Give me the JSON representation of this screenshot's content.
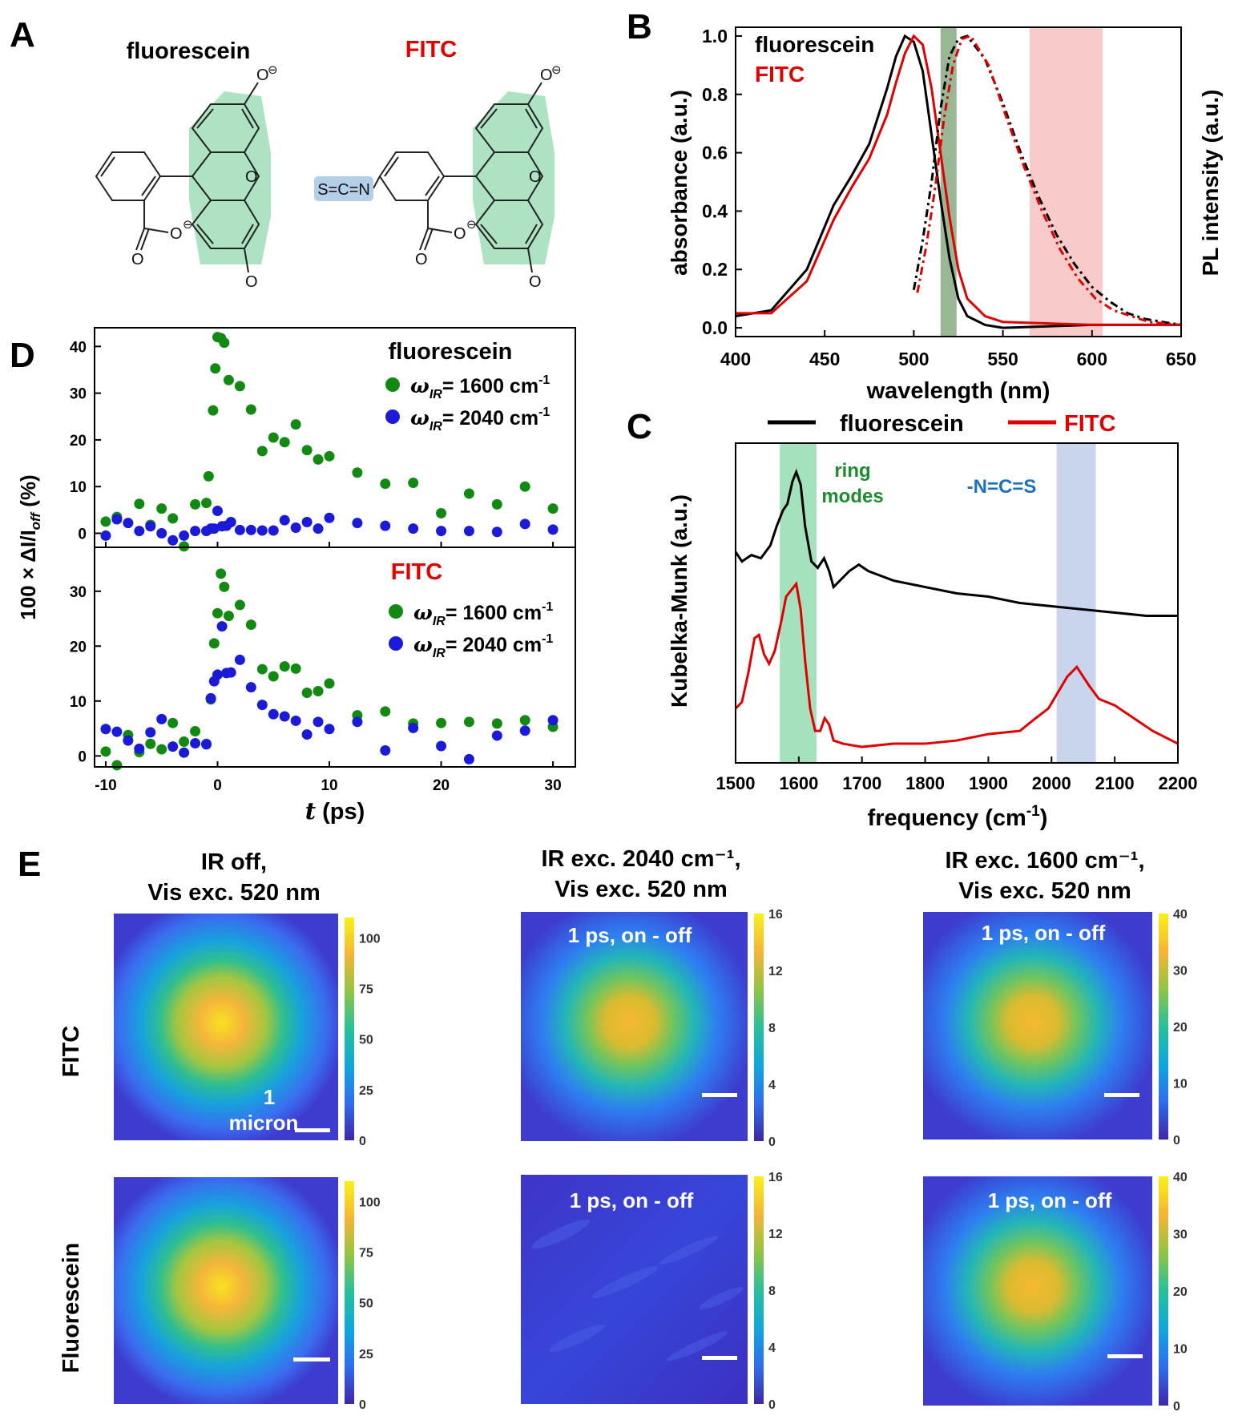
{
  "panels": {
    "A": {
      "letter": "A",
      "left_label": "fluorescein",
      "right_label": "FITC",
      "atom_O": "O",
      "minus": "⊖",
      "group": "S=C=N"
    },
    "B": {
      "letter": "B",
      "legend": [
        {
          "name": "fluorescein",
          "color": "#000000"
        },
        {
          "name": "FITC",
          "color": "#e00000"
        }
      ],
      "xlabel": "wavelength (nm)",
      "ylabel": "absorbance (a.u.)",
      "y2label": "PL intensity (a.u.)"
    },
    "C": {
      "letter": "C",
      "legend": [
        {
          "name": "fluorescein",
          "color": "#000000"
        },
        {
          "name": "FITC",
          "color": "#e00000"
        }
      ],
      "xlabel_main": "frequency (cm",
      "xlabel_sup": "-1",
      "xlabel_end": ")",
      "ylabel": "Kubelka-Munk (a.u.)",
      "band1_line1": "ring",
      "band1_line2": "modes",
      "band2": "-N=C=S"
    },
    "D": {
      "letter": "D",
      "top_label": "fluorescein",
      "bottom_label": "FITC",
      "legend_omega": "ω",
      "legend_sub": "IR",
      "legend_1600": "= 1600 cm",
      "legend_2040": "= 2040 cm",
      "legend_sup": "-1",
      "xlabel_t": "t",
      "xlabel_rest": " (ps)",
      "ylabel": "100 × ΔI/I",
      "ylabel_sub": "off",
      "ylabel_end": " (%)"
    },
    "E": {
      "letter": "E",
      "col_titles": [
        [
          "IR off,",
          "Vis exc. 520 nm"
        ],
        [
          "IR exc. 2040 cm⁻¹,",
          "Vis exc. 520 nm"
        ],
        [
          "IR exc. 1600 cm⁻¹,",
          "Vis exc. 520 nm"
        ]
      ],
      "row_labels": [
        "FITC",
        "Fluorescein"
      ],
      "inset_label": "1 ps, on - off",
      "scalebar_label_1": "1",
      "scalebar_label_2": "micron",
      "colorbars": [
        {
          "ticks": [
            "100",
            "75",
            "50",
            "25",
            "0"
          ],
          "max": 110
        },
        {
          "ticks": [
            "16",
            "12",
            "8",
            "4",
            "0"
          ],
          "max": 16
        },
        {
          "ticks": [
            "40",
            "30",
            "20",
            "10",
            "0"
          ],
          "max": 40
        }
      ],
      "colormap": [
        "#3e26a8",
        "#2f7df6",
        "#0fb1d4",
        "#33c28e",
        "#a6c33b",
        "#f7b630",
        "#f7e71b"
      ]
    }
  },
  "chart_data": [
    {
      "panel": "B",
      "type": "line",
      "xlabel": "wavelength (nm)",
      "ylabel": "absorbance (a.u.)",
      "y2label": "PL intensity (a.u.)",
      "xlim": [
        400,
        650
      ],
      "ylim": [
        -0.03,
        1.03
      ],
      "xticks": [
        400,
        450,
        500,
        550,
        600,
        650
      ],
      "yticks": [
        0.0,
        0.2,
        0.4,
        0.6,
        0.8,
        1.0
      ],
      "bands": [
        {
          "x0": 515,
          "x1": 524,
          "color": "#8faf8a"
        },
        {
          "x0": 565,
          "x1": 606,
          "color": "#f7c4c4"
        }
      ],
      "series": [
        {
          "name": "fluorescein",
          "kind": "absorbance",
          "color": "#000000",
          "dash": "",
          "x": [
            400,
            420,
            440,
            455,
            465,
            475,
            485,
            490,
            495,
            500,
            505,
            510,
            515,
            520,
            525,
            530,
            540,
            550,
            600,
            650
          ],
          "y": [
            0.04,
            0.06,
            0.2,
            0.42,
            0.52,
            0.63,
            0.82,
            0.93,
            1.0,
            0.98,
            0.88,
            0.66,
            0.44,
            0.24,
            0.1,
            0.04,
            0.01,
            0.0,
            0.01,
            0.01
          ]
        },
        {
          "name": "FITC",
          "kind": "absorbance",
          "color": "#e00000",
          "dash": "",
          "x": [
            400,
            420,
            440,
            455,
            465,
            475,
            485,
            490,
            495,
            500,
            505,
            510,
            515,
            520,
            525,
            530,
            540,
            550,
            600,
            650
          ],
          "y": [
            0.05,
            0.05,
            0.16,
            0.37,
            0.48,
            0.58,
            0.73,
            0.84,
            0.94,
            1.0,
            0.97,
            0.82,
            0.6,
            0.38,
            0.2,
            0.1,
            0.04,
            0.02,
            0.01,
            0.01
          ]
        },
        {
          "name": "fluorescein",
          "kind": "PL",
          "color": "#000000",
          "dash": "10,5,3,5",
          "x": [
            500,
            505,
            510,
            515,
            520,
            525,
            530,
            540,
            550,
            560,
            570,
            580,
            590,
            600,
            610,
            620,
            630,
            650
          ],
          "y": [
            0.13,
            0.3,
            0.5,
            0.75,
            0.93,
            0.99,
            1.0,
            0.92,
            0.77,
            0.6,
            0.45,
            0.32,
            0.22,
            0.14,
            0.09,
            0.05,
            0.03,
            0.01
          ]
        },
        {
          "name": "FITC",
          "kind": "PL",
          "color": "#e00000",
          "dash": "10,5,3,5",
          "x": [
            502,
            507,
            512,
            517,
            522,
            527,
            532,
            542,
            552,
            562,
            572,
            582,
            592,
            602,
            612,
            622,
            632,
            650
          ],
          "y": [
            0.12,
            0.28,
            0.48,
            0.72,
            0.9,
            0.99,
            1.0,
            0.9,
            0.72,
            0.55,
            0.4,
            0.27,
            0.17,
            0.1,
            0.06,
            0.04,
            0.02,
            0.01
          ]
        }
      ]
    },
    {
      "panel": "C",
      "type": "line",
      "xlabel": "frequency (cm-1)",
      "ylabel": "Kubelka-Munk (a.u.)",
      "xlim": [
        1500,
        2200
      ],
      "ylim": [
        0,
        1
      ],
      "xticks": [
        1500,
        1600,
        1700,
        1800,
        1900,
        2000,
        2100,
        2200
      ],
      "bands": [
        {
          "x0": 1570,
          "x1": 1628,
          "color": "#9ee0b8"
        },
        {
          "x0": 2008,
          "x1": 2070,
          "color": "#c6d2ec"
        }
      ],
      "series": [
        {
          "name": "fluorescein",
          "color": "#000000",
          "x": [
            1500,
            1510,
            1525,
            1540,
            1555,
            1565,
            1575,
            1582,
            1590,
            1596,
            1603,
            1610,
            1620,
            1630,
            1640,
            1648,
            1655,
            1665,
            1680,
            1695,
            1710,
            1750,
            1800,
            1850,
            1900,
            1950,
            2000,
            2050,
            2100,
            2150,
            2200
          ],
          "y": [
            0.66,
            0.63,
            0.65,
            0.64,
            0.68,
            0.74,
            0.79,
            0.81,
            0.88,
            0.91,
            0.87,
            0.74,
            0.63,
            0.61,
            0.64,
            0.6,
            0.55,
            0.57,
            0.6,
            0.62,
            0.6,
            0.57,
            0.55,
            0.53,
            0.52,
            0.5,
            0.49,
            0.48,
            0.47,
            0.46,
            0.46
          ]
        },
        {
          "name": "FITC",
          "color": "#e00000",
          "x": [
            1500,
            1510,
            1520,
            1530,
            1537,
            1545,
            1553,
            1562,
            1572,
            1580,
            1588,
            1596,
            1603,
            1610,
            1618,
            1626,
            1634,
            1641,
            1648,
            1655,
            1670,
            1700,
            1750,
            1800,
            1850,
            1900,
            1950,
            1975,
            1995,
            2010,
            2025,
            2040,
            2050,
            2060,
            2075,
            2100,
            2130,
            2160,
            2200
          ],
          "y": [
            0.17,
            0.19,
            0.28,
            0.39,
            0.4,
            0.34,
            0.31,
            0.35,
            0.44,
            0.52,
            0.54,
            0.56,
            0.48,
            0.32,
            0.17,
            0.1,
            0.1,
            0.14,
            0.12,
            0.07,
            0.06,
            0.05,
            0.06,
            0.06,
            0.07,
            0.09,
            0.1,
            0.14,
            0.17,
            0.22,
            0.27,
            0.3,
            0.27,
            0.24,
            0.2,
            0.18,
            0.14,
            0.1,
            0.06
          ]
        }
      ]
    },
    {
      "panel": "D-top",
      "type": "scatter",
      "title": "fluorescein",
      "xlim": [
        -11,
        32
      ],
      "ylim": [
        -3,
        44
      ],
      "yticks": [
        0,
        10,
        20,
        30,
        40
      ],
      "series": [
        {
          "name": "ω_IR = 1600 cm-1",
          "color": "#128a12",
          "x": [
            -10,
            -9,
            -7,
            -6,
            -5,
            -4,
            -3,
            -2,
            -1,
            -0.8,
            -0.4,
            -0.2,
            0,
            0.3,
            0.6,
            1,
            2,
            3,
            4,
            5,
            6,
            7,
            8,
            9,
            10,
            12.5,
            15,
            17.5,
            20,
            22.5,
            25,
            27.5,
            30
          ],
          "y": [
            2.5,
            3.5,
            6.3,
            1.8,
            5.3,
            3.2,
            -2.8,
            6.2,
            6.5,
            12.2,
            26.3,
            35.3,
            42,
            41.8,
            40.8,
            32.8,
            31.5,
            26.5,
            17.6,
            20.5,
            19.5,
            23.3,
            17.8,
            15.8,
            16.5,
            13,
            10.6,
            10.8,
            4.3,
            8.5,
            6.2,
            10,
            5.3
          ]
        },
        {
          "name": "ω_IR = 2040 cm-1",
          "color": "#1a1ad8",
          "x": [
            -10,
            -9,
            -8,
            -7,
            -6,
            -5,
            -4,
            -3,
            -2,
            -1,
            -0.6,
            -0.3,
            0,
            0.4,
            0.8,
            1.2,
            2,
            3,
            4,
            5,
            6,
            7,
            8,
            9,
            10,
            12.5,
            15,
            17.5,
            20,
            22.5,
            25,
            27.5,
            30
          ],
          "y": [
            -0.5,
            3,
            2.2,
            0.5,
            1.5,
            0,
            -1.5,
            -0.5,
            0.5,
            0.5,
            1,
            1,
            4.8,
            1.5,
            1.6,
            2.4,
            0.7,
            0.7,
            0.6,
            0.6,
            2.8,
            1.2,
            2.4,
            1,
            3.3,
            2.2,
            1.6,
            1,
            0.5,
            0.5,
            0.3,
            2,
            0.8
          ]
        }
      ]
    },
    {
      "panel": "D-bottom",
      "type": "scatter",
      "title": "FITC",
      "xlim": [
        -11,
        32
      ],
      "ylim": [
        -2,
        38
      ],
      "yticks": [
        0,
        10,
        20,
        30
      ],
      "xticks": [
        -10,
        0,
        10,
        20,
        30
      ],
      "xlabel": "t (ps)",
      "series": [
        {
          "name": "ω_IR = 1600 cm-1",
          "color": "#128a12",
          "x": [
            -10,
            -9,
            -8,
            -7,
            -6,
            -5,
            -4,
            -3,
            -2,
            -1,
            -0.6,
            -0.3,
            0,
            0.3,
            0.6,
            1,
            2,
            3,
            4,
            5,
            6,
            7,
            8,
            9,
            10,
            12.5,
            15,
            17.5,
            20,
            22.5,
            25,
            27.5,
            30
          ],
          "y": [
            0.8,
            -1.7,
            3.8,
            0.7,
            2.2,
            1.2,
            6,
            2.6,
            4.5,
            2.2,
            10.3,
            20.5,
            26,
            33.2,
            30.8,
            25.5,
            27.5,
            23.9,
            15.8,
            14.5,
            16.3,
            15.9,
            11.5,
            11.8,
            13.2,
            7.4,
            8.1,
            5.9,
            6,
            6.2,
            5.9,
            6.5,
            5.3
          ]
        },
        {
          "name": "ω_IR = 2040 cm-1",
          "color": "#1a1ad8",
          "x": [
            -10,
            -9,
            -8,
            -7,
            -6,
            -5,
            -4,
            -3,
            -2,
            -1,
            -0.6,
            -0.3,
            0,
            0.4,
            0.8,
            1.2,
            2,
            3,
            4,
            5,
            6,
            7,
            8,
            9,
            10,
            12.5,
            15,
            17.5,
            20,
            22.5,
            25,
            27.5,
            30
          ],
          "y": [
            4.9,
            4.4,
            2.8,
            1.3,
            4.3,
            6.7,
            1.7,
            0.6,
            2.3,
            2.1,
            10.5,
            13.6,
            14.8,
            23.6,
            15.1,
            15.2,
            17.5,
            12.5,
            9.3,
            7.6,
            7.2,
            6.4,
            3.9,
            6.2,
            4.9,
            6.2,
            1,
            5.1,
            1.8,
            -0.6,
            3.7,
            4.6,
            6.5
          ]
        }
      ]
    }
  ]
}
